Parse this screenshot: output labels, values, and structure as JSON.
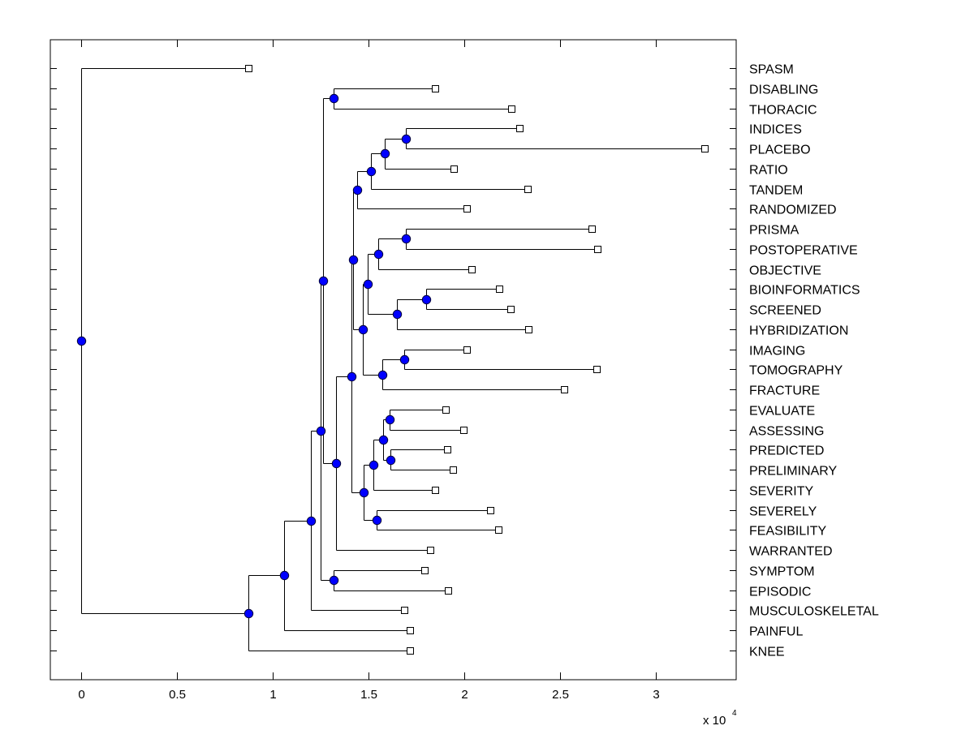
{
  "chart_data": {
    "type": "dendrogram",
    "title": "",
    "xlabel": "",
    "ylabel": "",
    "x_scale_label": {
      "prefix": "x 10",
      "exponent": "4"
    },
    "xlim": [
      -0.161,
      3.42
    ],
    "xticks": [
      0,
      0.5,
      1,
      1.5,
      2,
      2.5,
      3
    ],
    "xtick_labels": [
      "0",
      "0.5",
      "1",
      "1.5",
      "2",
      "2.5",
      "3"
    ],
    "grid": false,
    "orientation": "root-left, leaves-right",
    "colors": {
      "node_fill": "#0000ff",
      "leaf_fill": "#ffffff",
      "line": "#000000"
    },
    "leaves": [
      {
        "id": "SPASM",
        "label": "SPASM",
        "x": 0.873
      },
      {
        "id": "DISABLING",
        "label": "DISABLING",
        "x": 1.847
      },
      {
        "id": "THORACIC",
        "label": "THORACIC",
        "x": 2.246
      },
      {
        "id": "INDICES",
        "label": "INDICES",
        "x": 2.288
      },
      {
        "id": "PLACEBO",
        "label": "PLACEBO",
        "x": 3.254
      },
      {
        "id": "RATIO",
        "label": "RATIO",
        "x": 1.945
      },
      {
        "id": "TANDEM",
        "label": "TANDEM",
        "x": 2.331
      },
      {
        "id": "RANDOMIZED",
        "label": "RANDOMIZED",
        "x": 2.013
      },
      {
        "id": "PRISMA",
        "label": "PRISMA",
        "x": 2.665
      },
      {
        "id": "POSTOPERATIVE",
        "label": "POSTOPERATIVE",
        "x": 2.695
      },
      {
        "id": "OBJECTIVE",
        "label": "OBJECTIVE",
        "x": 2.038
      },
      {
        "id": "BIOINFORMATICS",
        "label": "BIOINFORMATICS",
        "x": 2.182
      },
      {
        "id": "SCREENED",
        "label": "SCREENED",
        "x": 2.242
      },
      {
        "id": "HYBRIDIZATION",
        "label": "HYBRIDIZATION",
        "x": 2.335
      },
      {
        "id": "IMAGING",
        "label": "IMAGING",
        "x": 2.013
      },
      {
        "id": "TOMOGRAPHY",
        "label": "TOMOGRAPHY",
        "x": 2.691
      },
      {
        "id": "FRACTURE",
        "label": "FRACTURE",
        "x": 2.521
      },
      {
        "id": "EVALUATE",
        "label": "EVALUATE",
        "x": 1.903
      },
      {
        "id": "ASSESSING",
        "label": "ASSESSING",
        "x": 1.996
      },
      {
        "id": "PREDICTED",
        "label": "PREDICTED",
        "x": 1.911
      },
      {
        "id": "PRELIMINARY",
        "label": "PRELIMINARY",
        "x": 1.941
      },
      {
        "id": "SEVERITY",
        "label": "SEVERITY",
        "x": 1.847
      },
      {
        "id": "SEVERELY",
        "label": "SEVERELY",
        "x": 2.136
      },
      {
        "id": "FEASIBILITY",
        "label": "FEASIBILITY",
        "x": 2.178
      },
      {
        "id": "WARRANTED",
        "label": "WARRANTED",
        "x": 1.822
      },
      {
        "id": "SYMPTOM",
        "label": "SYMPTOM",
        "x": 1.792
      },
      {
        "id": "EPISODIC",
        "label": "EPISODIC",
        "x": 1.915
      },
      {
        "id": "MUSCULOSKELETAL",
        "label": "MUSCULOSKELETAL",
        "x": 1.686
      },
      {
        "id": "PAINFUL",
        "label": "PAINFUL",
        "x": 1.716
      },
      {
        "id": "KNEE",
        "label": "KNEE",
        "x": 1.716
      }
    ],
    "nodes": [
      {
        "id": "n_root",
        "x": 0.0,
        "children": [
          "SPASM",
          "n_knee"
        ]
      },
      {
        "id": "n_knee",
        "x": 0.873,
        "children": [
          "n_painful",
          "KNEE"
        ]
      },
      {
        "id": "n_painful",
        "x": 1.059,
        "children": [
          "n_musc",
          "PAINFUL"
        ]
      },
      {
        "id": "n_musc",
        "x": 1.199,
        "children": [
          "n_B",
          "MUSCULOSKELETAL"
        ]
      },
      {
        "id": "n_B",
        "x": 1.25,
        "children": [
          "n_A",
          "n_symep"
        ]
      },
      {
        "id": "n_A",
        "x": 1.263,
        "children": [
          "n_disthor",
          "n_warr"
        ]
      },
      {
        "id": "n_disthor",
        "x": 1.318,
        "children": [
          "DISABLING",
          "THORACIC"
        ]
      },
      {
        "id": "n_symep",
        "x": 1.318,
        "children": [
          "SYMPTOM",
          "EPISODIC"
        ]
      },
      {
        "id": "n_warr",
        "x": 1.331,
        "children": [
          "n_big",
          "WARRANTED"
        ]
      },
      {
        "id": "n_big",
        "x": 1.411,
        "children": [
          "n_upper",
          "n_lower"
        ]
      },
      {
        "id": "n_upper",
        "x": 1.419,
        "children": [
          "n_rand",
          "n_mid"
        ]
      },
      {
        "id": "n_rand",
        "x": 1.441,
        "children": [
          "n_tand",
          "RANDOMIZED"
        ]
      },
      {
        "id": "n_tand",
        "x": 1.513,
        "children": [
          "n_ratio",
          "TANDEM"
        ]
      },
      {
        "id": "n_ratio",
        "x": 1.585,
        "children": [
          "n_indpla",
          "RATIO"
        ]
      },
      {
        "id": "n_indpla",
        "x": 1.695,
        "children": [
          "INDICES",
          "PLACEBO"
        ]
      },
      {
        "id": "n_mid",
        "x": 1.47,
        "children": [
          "n_obj",
          "n_frac"
        ]
      },
      {
        "id": "n_obj",
        "x": 1.496,
        "children": [
          "n_objin",
          "n_hyb"
        ]
      },
      {
        "id": "n_objin",
        "x": 1.551,
        "children": [
          "n_prispost",
          "OBJECTIVE"
        ]
      },
      {
        "id": "n_prispost",
        "x": 1.695,
        "children": [
          "PRISMA",
          "POSTOPERATIVE"
        ]
      },
      {
        "id": "n_hyb",
        "x": 1.648,
        "children": [
          "n_bioscr",
          "HYBRIDIZATION"
        ]
      },
      {
        "id": "n_bioscr",
        "x": 1.801,
        "children": [
          "BIOINFORMATICS",
          "SCREENED"
        ]
      },
      {
        "id": "n_frac",
        "x": 1.572,
        "children": [
          "n_imtom",
          "FRACTURE"
        ]
      },
      {
        "id": "n_imtom",
        "x": 1.686,
        "children": [
          "IMAGING",
          "TOMOGRAPHY"
        ]
      },
      {
        "id": "n_lower",
        "x": 1.475,
        "children": [
          "n_sev",
          "n_sevfeas"
        ]
      },
      {
        "id": "n_sev",
        "x": 1.525,
        "children": [
          "n_eap",
          "SEVERITY"
        ]
      },
      {
        "id": "n_eap",
        "x": 1.576,
        "children": [
          "n_evass",
          "n_predpre"
        ]
      },
      {
        "id": "n_evass",
        "x": 1.61,
        "children": [
          "EVALUATE",
          "ASSESSING"
        ]
      },
      {
        "id": "n_predpre",
        "x": 1.614,
        "children": [
          "PREDICTED",
          "PRELIMINARY"
        ]
      },
      {
        "id": "n_sevfeas",
        "x": 1.542,
        "children": [
          "SEVERELY",
          "FEASIBILITY"
        ]
      }
    ],
    "root": "n_root"
  }
}
